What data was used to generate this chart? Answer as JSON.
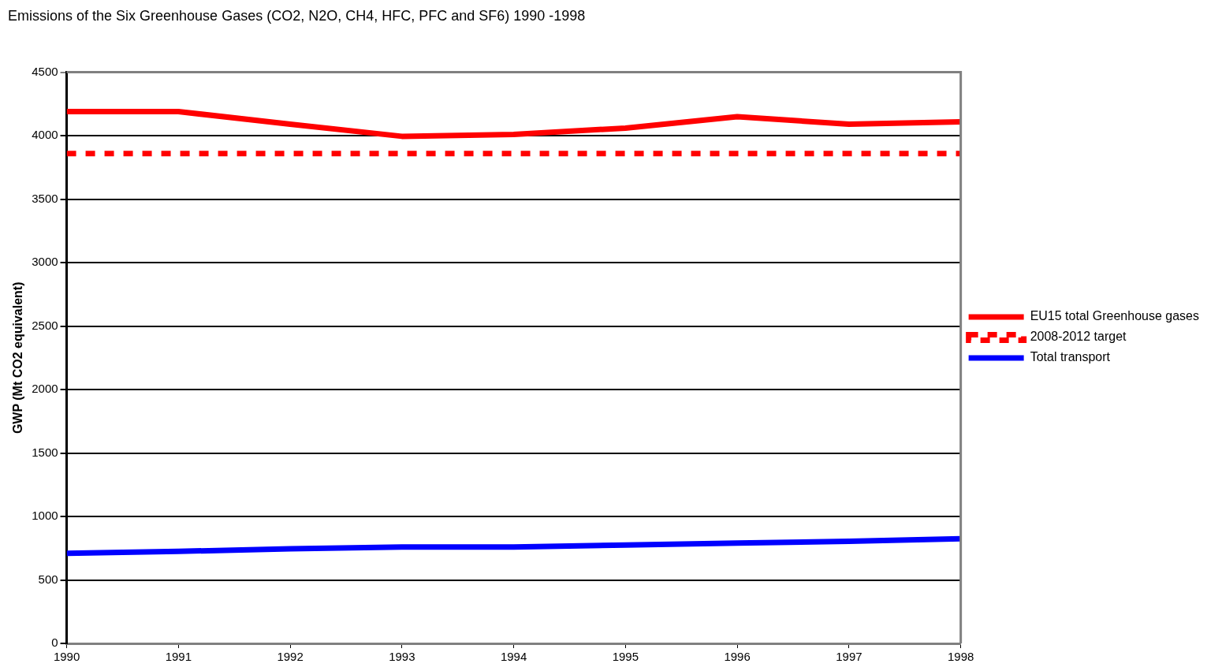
{
  "chart_data": {
    "type": "line",
    "title": "Emissions of the Six Greenhouse Gases (CO2, N2O, CH4, HFC, PFC and SF6) 1990 -1998",
    "ylabel": "GWP (Mt CO2 equivalent)",
    "x": [
      1990,
      1991,
      1992,
      1993,
      1994,
      1995,
      1996,
      1997,
      1998
    ],
    "series": [
      {
        "name": "EU15 total Greenhouse gases",
        "color": "#ff0000",
        "values": [
          4190,
          4190,
          4090,
          3995,
          4010,
          4060,
          4150,
          4090,
          4110
        ]
      },
      {
        "name": "2008-2012 target",
        "color": "#ff0000",
        "line_style": "dotted",
        "values": [
          3860,
          3860,
          3860,
          3860,
          3860,
          3860,
          3860,
          3860,
          3860
        ]
      },
      {
        "name": "Total transport",
        "color": "#0000ff",
        "values": [
          710,
          725,
          745,
          760,
          760,
          775,
          790,
          805,
          825
        ]
      }
    ],
    "xlim": [
      1990,
      1998
    ],
    "xticks": [
      1990,
      1991,
      1992,
      1993,
      1994,
      1995,
      1996,
      1997,
      1998
    ],
    "ylim": [
      0,
      4500
    ],
    "yticks": [
      0,
      500,
      1000,
      1500,
      2000,
      2500,
      3000,
      3500,
      4000,
      4500
    ],
    "grid": "y",
    "legend": "right",
    "marker": "none"
  }
}
